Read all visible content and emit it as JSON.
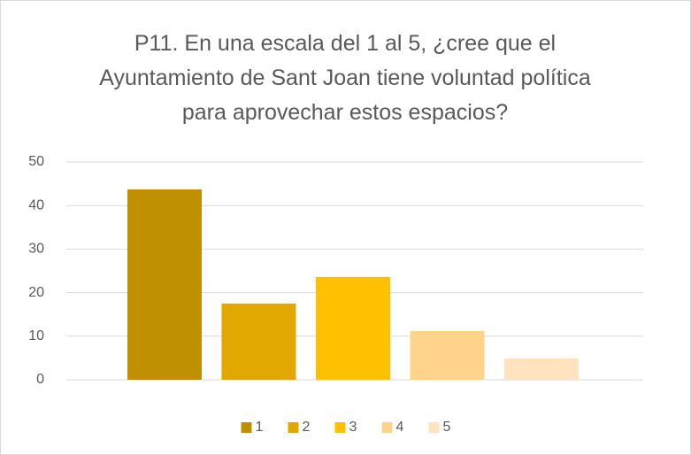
{
  "chart_data": {
    "type": "bar",
    "title": "P11. En una escala del 1 al 5, ¿cree que el Ayuntamiento de Sant Joan tiene voluntad política para aprovechar estos espacios?",
    "categories": [
      null
    ],
    "series": [
      {
        "name": "1",
        "color": "#bf9000",
        "values": [
          43.7
        ]
      },
      {
        "name": "2",
        "color": "#e0a800",
        "values": [
          17.5
        ]
      },
      {
        "name": "3",
        "color": "#ffc000",
        "values": [
          23.6
        ]
      },
      {
        "name": "4",
        "color": "#ffd48a",
        "values": [
          11.2
        ]
      },
      {
        "name": "5",
        "color": "#ffe3bf",
        "values": [
          4.9
        ]
      }
    ],
    "ylim": [
      0,
      50
    ],
    "yticks": [
      0,
      10,
      20,
      30,
      40,
      50
    ],
    "grid": true,
    "legend": "bottom"
  }
}
